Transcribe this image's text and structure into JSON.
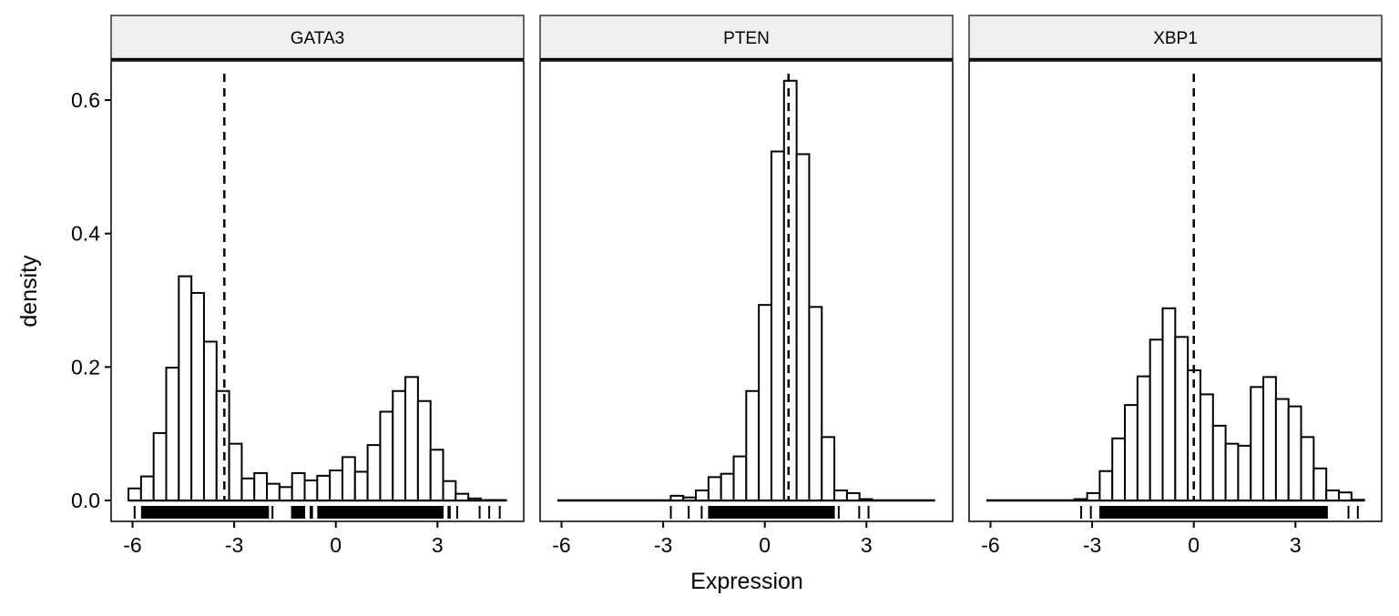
{
  "chart_data": {
    "type": "bar",
    "subtype": "faceted histogram with rug and dashed reference line",
    "xlabel": "Expression",
    "ylabel": "density",
    "xlim": [
      -6.12,
      5.02
    ],
    "ylim": [
      0,
      0.65
    ],
    "x_ticks": [
      "-6",
      "-3",
      "0",
      "3"
    ],
    "x_tick_values": [
      -6,
      -3,
      0,
      3
    ],
    "y_ticks": [
      "0.0",
      "0.2",
      "0.4",
      "0.6"
    ],
    "y_tick_values": [
      0,
      0.2,
      0.4,
      0.6
    ],
    "bins": {
      "start": -6.12,
      "width": 0.3715,
      "count": 30
    },
    "grid": false,
    "facets": [
      {
        "title": "GATA3",
        "vline": -3.29,
        "density": [
          0.018,
          0.036,
          0.101,
          0.199,
          0.336,
          0.311,
          0.238,
          0.164,
          0.085,
          0.033,
          0.041,
          0.025,
          0.02,
          0.041,
          0.03,
          0.037,
          0.045,
          0.065,
          0.043,
          0.083,
          0.133,
          0.164,
          0.185,
          0.149,
          0.076,
          0.029,
          0.01,
          0.003,
          0.0005,
          0.0005
        ]
      },
      {
        "title": "PTEN",
        "vline": 0.7,
        "density": [
          0,
          0,
          0,
          0,
          0,
          0,
          0,
          0,
          0,
          0.007,
          0.0045,
          0.015,
          0.035,
          0.04,
          0.066,
          0.164,
          0.293,
          0.523,
          0.629,
          0.519,
          0.29,
          0.095,
          0.015,
          0.011,
          0.002,
          0,
          0,
          0,
          0,
          0
        ]
      },
      {
        "title": "XBP1",
        "vline": 0.0,
        "density": [
          0,
          0,
          0,
          0,
          0,
          0,
          0,
          0.002,
          0.011,
          0.044,
          0.093,
          0.143,
          0.186,
          0.241,
          0.288,
          0.245,
          0.195,
          0.159,
          0.112,
          0.085,
          0.082,
          0.17,
          0.185,
          0.152,
          0.141,
          0.095,
          0.048,
          0.015,
          0.012,
          0.001
        ]
      }
    ]
  }
}
